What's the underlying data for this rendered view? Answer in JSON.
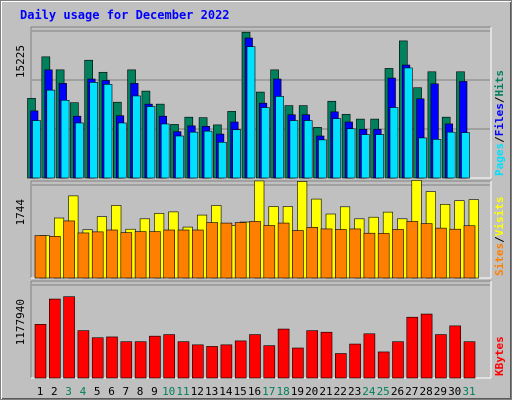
{
  "title": "Daily usage for December 2022",
  "colors": {
    "hits": "#00805c",
    "files": "#0000ff",
    "pages": "#00e0ff",
    "visits": "#ffff00",
    "sites": "#ff8000",
    "kbytes": "#ff0000",
    "weekend_day": "#00805c",
    "weekday": "#000000"
  },
  "chart_data": [
    {
      "type": "bar",
      "name": "hits-files-pages",
      "categories": [
        "1",
        "2",
        "3",
        "4",
        "5",
        "6",
        "7",
        "8",
        "9",
        "10",
        "11",
        "12",
        "13",
        "14",
        "15",
        "16",
        "17",
        "18",
        "19",
        "20",
        "21",
        "22",
        "23",
        "24",
        "25",
        "26",
        "27",
        "28",
        "29",
        "30",
        "31"
      ],
      "weekend_days": [
        "3",
        "4",
        "10",
        "11",
        "17",
        "18",
        "24",
        "25",
        "31"
      ],
      "ymax_label": "15225",
      "ylim": [
        0,
        15225
      ],
      "legend": [
        "Pages",
        "/",
        "Files",
        "/",
        "Hits"
      ],
      "series": [
        {
          "name": "Hits",
          "color": "#00805c",
          "values": [
            8250,
            12550,
            11200,
            7800,
            12200,
            10950,
            7850,
            11200,
            9000,
            7650,
            5550,
            6300,
            6250,
            5500,
            6900,
            15100,
            8900,
            11200,
            7500,
            7500,
            5250,
            7950,
            6600,
            6100,
            6100,
            11350,
            14200,
            9350,
            11000,
            6300,
            11000
          ]
        },
        {
          "name": "Files",
          "color": "#0000ff",
          "values": [
            6950,
            11200,
            9800,
            6400,
            10250,
            10100,
            6450,
            9800,
            7650,
            6400,
            4800,
            5400,
            5350,
            4550,
            5800,
            14500,
            7750,
            10250,
            6550,
            6550,
            4350,
            6850,
            5800,
            5050,
            5050,
            10350,
            11700,
            8200,
            9750,
            5600,
            10000
          ]
        },
        {
          "name": "Pages",
          "color": "#00e0ff",
          "values": [
            5950,
            9100,
            8050,
            5700,
            9900,
            9700,
            5700,
            8500,
            7400,
            5600,
            4350,
            4750,
            4850,
            3700,
            5000,
            13600,
            7300,
            8450,
            5950,
            5950,
            3950,
            6150,
            5100,
            4500,
            4500,
            7300,
            11400,
            4150,
            4000,
            4750,
            4700
          ]
        }
      ]
    },
    {
      "type": "bar",
      "name": "sites-visits",
      "categories": [
        "1",
        "2",
        "3",
        "4",
        "5",
        "6",
        "7",
        "8",
        "9",
        "10",
        "11",
        "12",
        "13",
        "14",
        "15",
        "16",
        "17",
        "18",
        "19",
        "20",
        "21",
        "22",
        "23",
        "24",
        "25",
        "26",
        "27",
        "28",
        "29",
        "30",
        "31"
      ],
      "ymax_label": "1744",
      "ylim": [
        0,
        1744
      ],
      "legend": [
        "Sites",
        "/",
        "Visits"
      ],
      "series": [
        {
          "name": "Visits",
          "color": "#ffff00",
          "values": [
            795,
            1125,
            1540,
            905,
            1150,
            1360,
            915,
            1110,
            1210,
            1240,
            955,
            1180,
            1360,
            985,
            1050,
            1820,
            1340,
            1340,
            1810,
            1480,
            1200,
            1335,
            1110,
            1140,
            1235,
            1110,
            1830,
            1620,
            1380,
            1450,
            1470
          ]
        },
        {
          "name": "Sites",
          "color": "#ff8000",
          "values": [
            795,
            780,
            1070,
            845,
            865,
            900,
            850,
            870,
            870,
            900,
            900,
            900,
            1040,
            1030,
            1040,
            1060,
            985,
            1030,
            890,
            950,
            920,
            910,
            920,
            840,
            835,
            910,
            1060,
            1020,
            935,
            915,
            980
          ]
        }
      ]
    },
    {
      "type": "bar",
      "name": "kbytes",
      "categories": [
        "1",
        "2",
        "3",
        "4",
        "5",
        "6",
        "7",
        "8",
        "9",
        "10",
        "11",
        "12",
        "13",
        "14",
        "15",
        "16",
        "17",
        "18",
        "19",
        "20",
        "21",
        "22",
        "23",
        "24",
        "25",
        "26",
        "27",
        "28",
        "29",
        "30",
        "31"
      ],
      "ymax_label": "1177940",
      "ylim": [
        0,
        1177940
      ],
      "legend": [
        "KBytes"
      ],
      "series": [
        {
          "name": "KBytes",
          "color": "#ff0000",
          "values": [
            680000,
            1000000,
            1030000,
            600000,
            510000,
            520000,
            460000,
            460000,
            530000,
            550000,
            460000,
            420000,
            400000,
            420000,
            470000,
            550000,
            410000,
            620000,
            380000,
            600000,
            580000,
            310000,
            430000,
            560000,
            330000,
            460000,
            770000,
            810000,
            550000,
            660000,
            460000
          ]
        }
      ]
    }
  ]
}
